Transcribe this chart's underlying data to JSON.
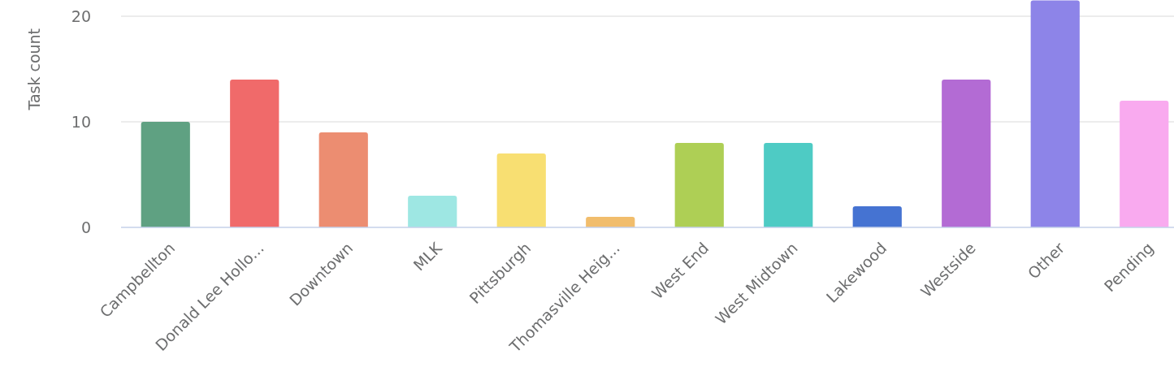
{
  "chart_data": {
    "type": "bar",
    "ylabel": "Task count",
    "categories": [
      "Campbellton",
      "Donald Lee Hollo...",
      "Downtown",
      "MLK",
      "Pittsburgh",
      "Thomasville Heig...",
      "West End",
      "West Midtown",
      "Lakewood",
      "Westside",
      "Other",
      "Pending"
    ],
    "values": [
      10,
      14,
      9,
      3,
      7,
      1,
      8,
      8,
      2,
      14,
      21.5,
      12
    ],
    "colors": [
      "#5fa182",
      "#f06a6a",
      "#ec8d71",
      "#9ee7e3",
      "#f8df72",
      "#f1bd6c",
      "#aecf55",
      "#4ecbc4",
      "#4573d2",
      "#b36bd4",
      "#8d84e8",
      "#f9aaef"
    ],
    "ylim": [
      0,
      21.5
    ],
    "yticks": [
      0,
      10,
      20
    ],
    "grid": "y"
  }
}
